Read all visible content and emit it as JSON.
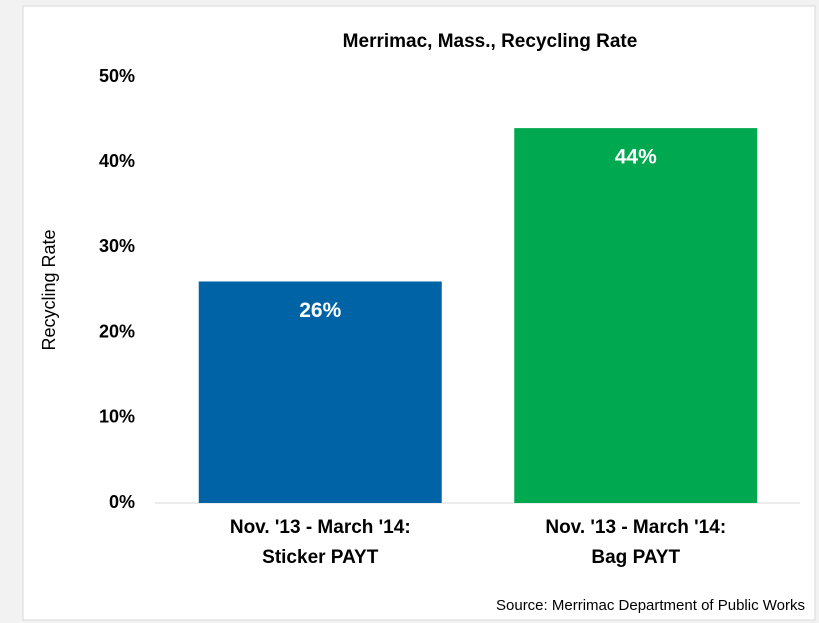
{
  "chart_data": {
    "type": "bar",
    "title": "Merrimac, Mass., Recycling Rate",
    "y_label": "Recycling Rate",
    "source": "Source: Merrimac Department of Public Works",
    "categories": [
      "Nov. '13 - March '14:\nSticker PAYT",
      "Nov. '13 - March '14:\nBag PAYT"
    ],
    "values": [
      26,
      44
    ],
    "value_labels": [
      "26%",
      "44%"
    ],
    "colors": [
      "#0063a6",
      "#00a84f"
    ],
    "ylim": [
      0,
      50
    ],
    "yticks": [
      {
        "value": 0,
        "label": "0%"
      },
      {
        "value": 10,
        "label": "10%"
      },
      {
        "value": 20,
        "label": "20%"
      },
      {
        "value": 30,
        "label": "30%"
      },
      {
        "value": 40,
        "label": "40%"
      },
      {
        "value": 50,
        "label": "50%"
      }
    ],
    "grid": false
  }
}
